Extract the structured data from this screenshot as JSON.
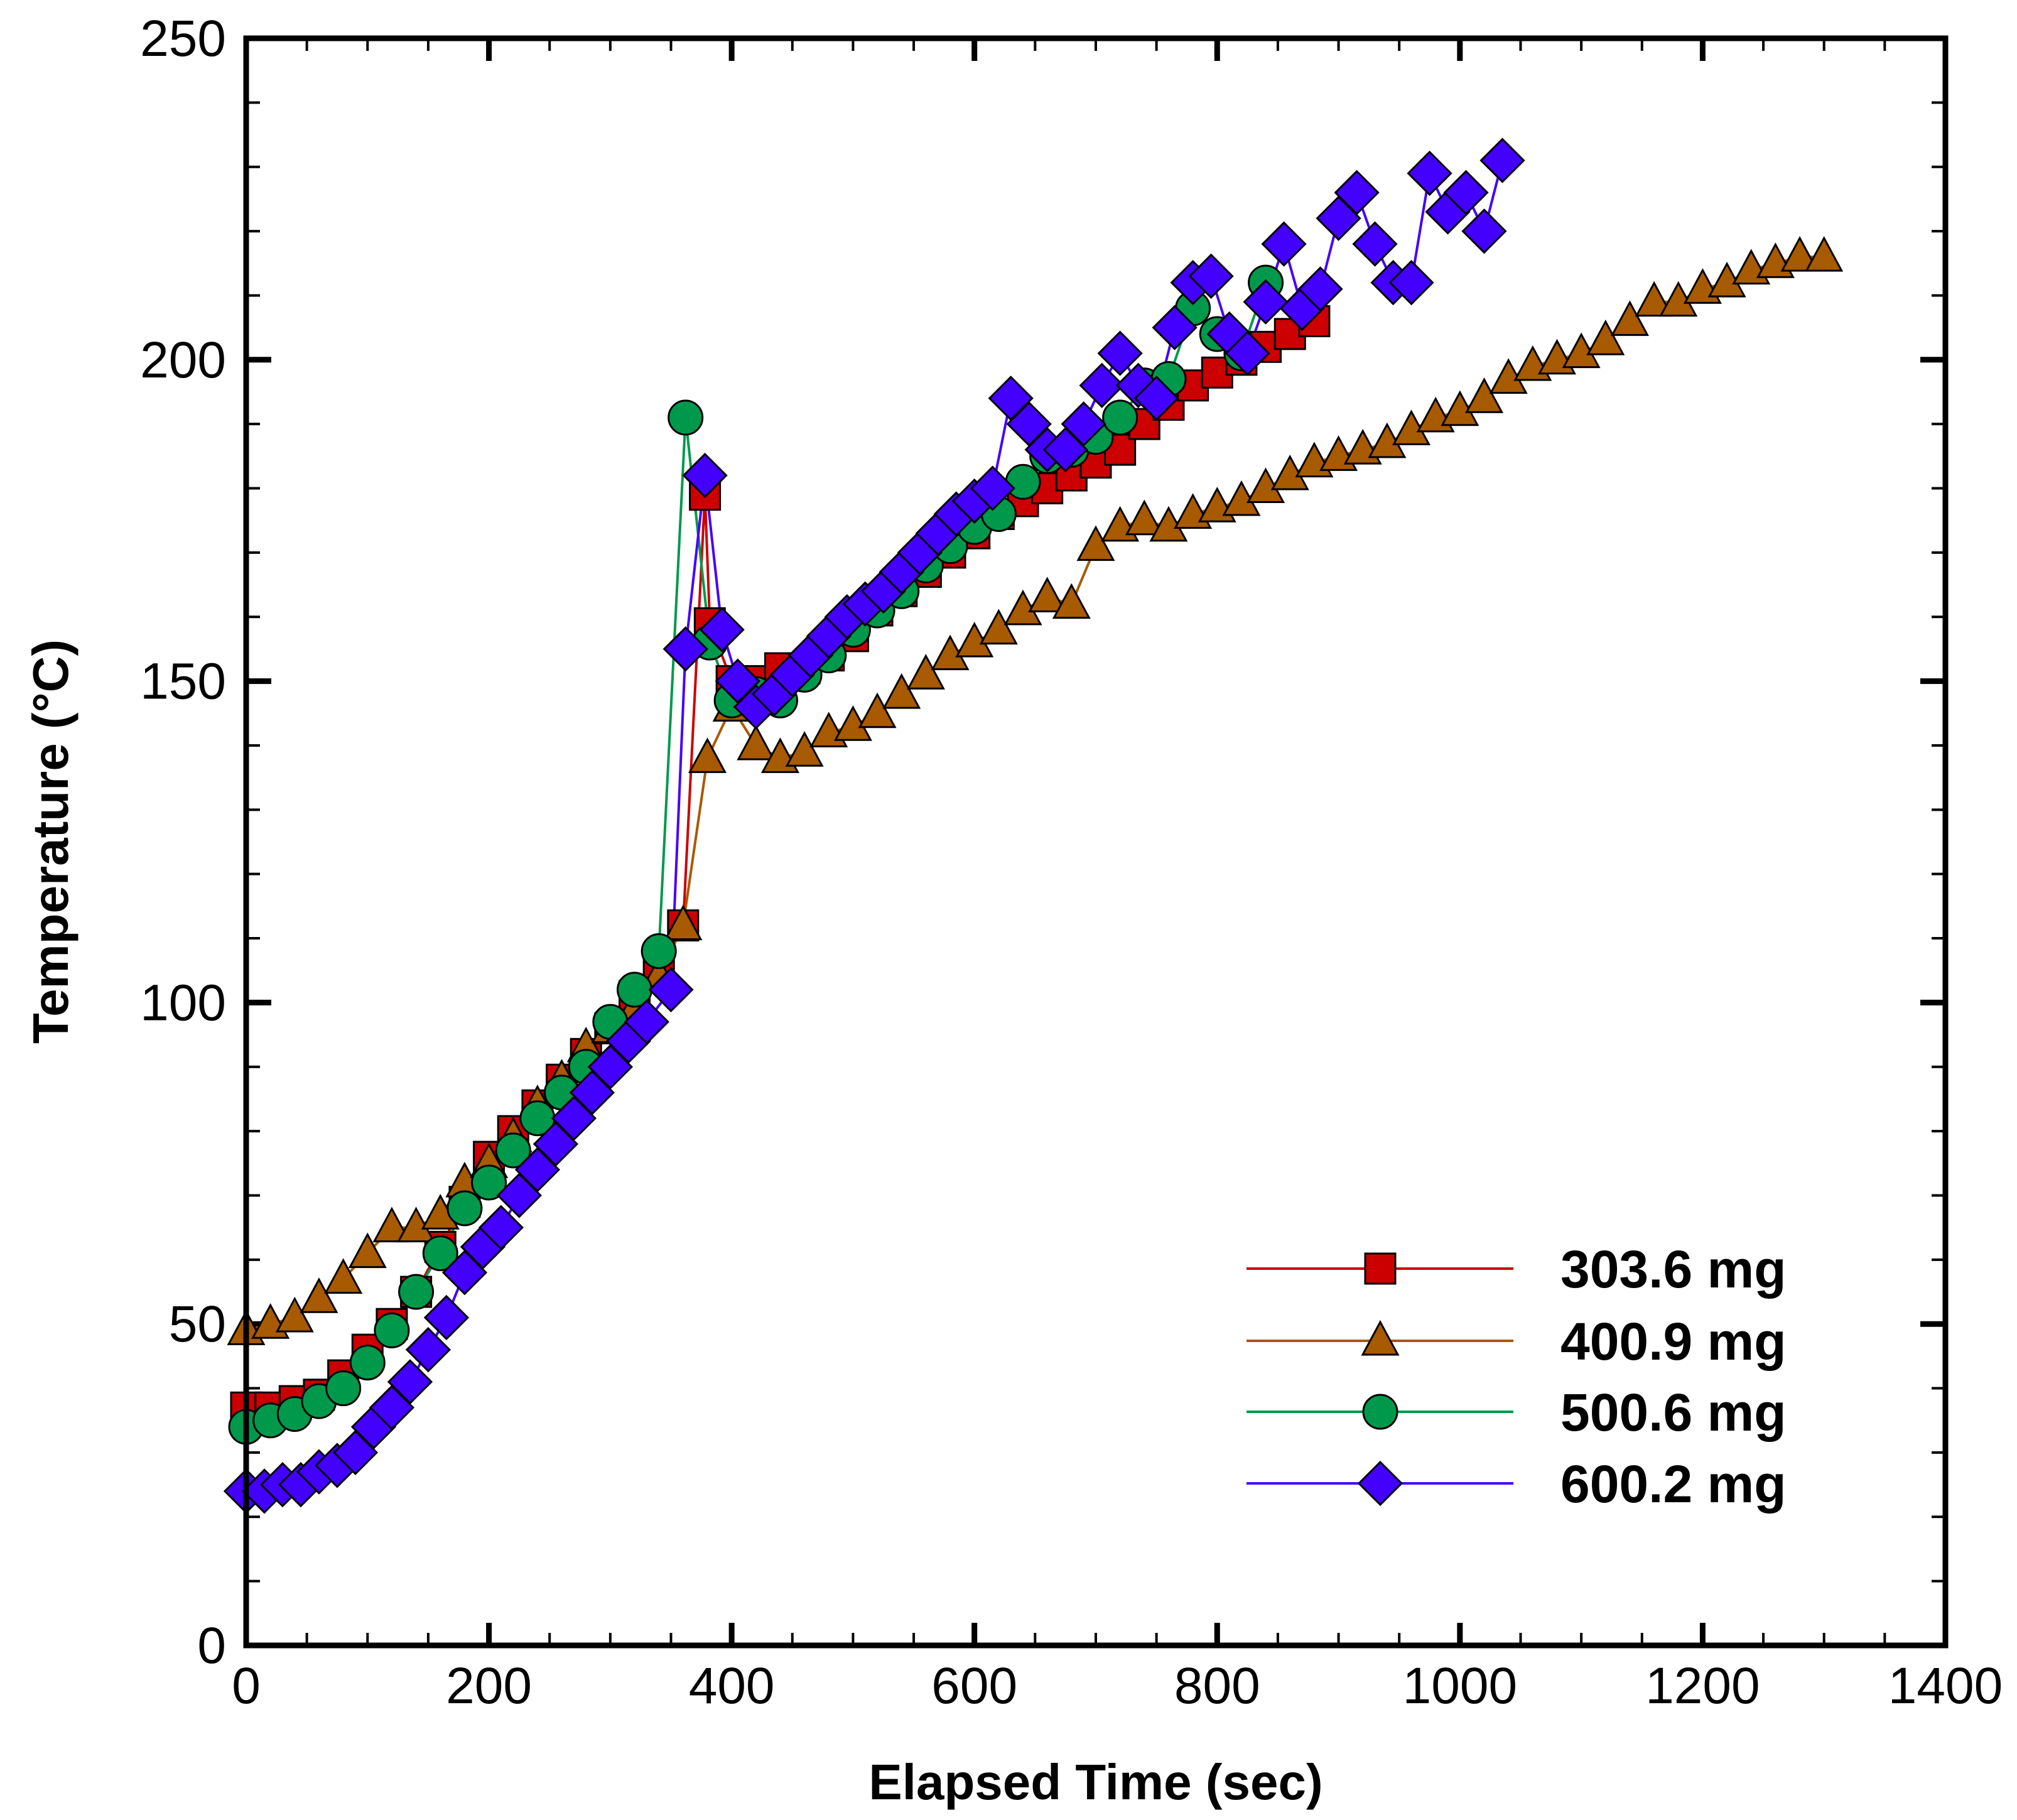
{
  "chart_data": {
    "type": "line",
    "title": "",
    "xlabel": "Elapsed Time (sec)",
    "ylabel": "Temperature (°C)",
    "xlim": [
      0,
      1400
    ],
    "ylim": [
      0,
      250
    ],
    "xticks": [
      "0",
      "200",
      "400",
      "600",
      "800",
      "1000",
      "1200",
      "1400"
    ],
    "yticks": [
      "0",
      "50",
      "100",
      "150",
      "200",
      "250"
    ],
    "grid": false,
    "legend_position": "bottom-right",
    "series": [
      {
        "name": "303.6 mg",
        "color": "#cc0000",
        "marker": "square",
        "x": [
          0,
          20,
          40,
          60,
          80,
          100,
          120,
          140,
          160,
          180,
          200,
          220,
          240,
          260,
          280,
          300,
          320,
          340,
          360,
          378,
          382,
          400,
          420,
          440,
          460,
          480,
          500,
          520,
          540,
          560,
          580,
          600,
          620,
          640,
          660,
          680,
          700,
          720,
          740,
          760,
          780,
          800,
          820,
          840,
          860,
          880
        ],
        "y": [
          37,
          37,
          38,
          39,
          42,
          46,
          50,
          55,
          62,
          69,
          76,
          80,
          84,
          88,
          92,
          96,
          101,
          106,
          112,
          179,
          159,
          150,
          150,
          152,
          152,
          154,
          157,
          161,
          164,
          167,
          170,
          173,
          176,
          178,
          180,
          182,
          184,
          186,
          190,
          193,
          196,
          198,
          200,
          202,
          204,
          206
        ]
      },
      {
        "name": "400.9 mg",
        "color": "#a85a00",
        "marker": "triangle",
        "x": [
          0,
          20,
          40,
          60,
          80,
          100,
          120,
          140,
          160,
          180,
          200,
          220,
          240,
          260,
          280,
          300,
          320,
          340,
          360,
          380,
          400,
          420,
          440,
          460,
          480,
          500,
          520,
          540,
          560,
          580,
          600,
          620,
          640,
          660,
          680,
          700,
          720,
          740,
          760,
          780,
          800,
          820,
          840,
          860,
          880,
          900,
          920,
          940,
          960,
          980,
          1000,
          1020,
          1040,
          1060,
          1080,
          1100,
          1120,
          1140,
          1160,
          1180,
          1200,
          1220,
          1240,
          1260,
          1280,
          1300
        ],
        "y": [
          49,
          50,
          51,
          54,
          57,
          61,
          65,
          65,
          67,
          72,
          75,
          79,
          84,
          88,
          93,
          96,
          99,
          104,
          112,
          138,
          146,
          140,
          138,
          139,
          142,
          143,
          145,
          148,
          151,
          154,
          156,
          158,
          161,
          163,
          162,
          171,
          174,
          175,
          174,
          176,
          177,
          178,
          180,
          182,
          184,
          185,
          186,
          187,
          189,
          191,
          192,
          194,
          197,
          199,
          200,
          201,
          203,
          206,
          209,
          209,
          211,
          212,
          214,
          215,
          216,
          216
        ]
      },
      {
        "name": "500.6 mg",
        "color": "#00994c",
        "marker": "circle",
        "x": [
          0,
          20,
          40,
          60,
          80,
          100,
          120,
          140,
          160,
          180,
          200,
          220,
          240,
          260,
          280,
          300,
          320,
          340,
          362,
          382,
          400,
          420,
          440,
          460,
          480,
          500,
          520,
          540,
          560,
          580,
          600,
          620,
          640,
          660,
          680,
          700,
          720,
          740,
          760,
          780,
          800,
          820,
          840
        ],
        "y": [
          34,
          35,
          36,
          38,
          40,
          44,
          49,
          55,
          61,
          68,
          72,
          77,
          82,
          86,
          90,
          97,
          102,
          108,
          191,
          156,
          147,
          148,
          147,
          151,
          154,
          158,
          161,
          164,
          168,
          171,
          174,
          176,
          181,
          185,
          186,
          188,
          191,
          196,
          197,
          208,
          204,
          201,
          212
        ]
      },
      {
        "name": "600.2 mg",
        "color": "#4400ff",
        "marker": "diamond",
        "x": [
          0,
          15,
          30,
          45,
          60,
          75,
          90,
          105,
          120,
          135,
          150,
          165,
          180,
          195,
          210,
          225,
          240,
          255,
          270,
          285,
          300,
          315,
          330,
          350,
          362,
          378,
          392,
          405,
          420,
          435,
          450,
          465,
          480,
          495,
          510,
          525,
          540,
          555,
          570,
          585,
          600,
          615,
          630,
          645,
          660,
          675,
          690,
          705,
          720,
          735,
          750,
          765,
          780,
          795,
          810,
          825,
          840,
          855,
          870,
          885,
          900,
          915,
          930,
          945,
          960,
          975,
          990,
          1005,
          1020,
          1035
        ],
        "y": [
          24,
          24,
          25,
          25,
          27,
          28,
          30,
          34,
          37,
          41,
          46,
          51,
          58,
          62,
          65,
          70,
          74,
          78,
          82,
          86,
          90,
          94,
          97,
          102,
          155,
          182,
          158,
          150,
          146,
          148,
          151,
          154,
          157,
          160,
          162,
          164,
          167,
          170,
          173,
          176,
          178,
          180,
          194,
          190,
          186,
          186,
          190,
          196,
          201,
          196,
          194,
          205,
          212,
          213,
          204,
          201,
          209,
          218,
          208,
          211,
          222,
          226,
          218,
          212,
          212,
          229,
          223,
          226,
          220,
          231
        ]
      }
    ]
  }
}
